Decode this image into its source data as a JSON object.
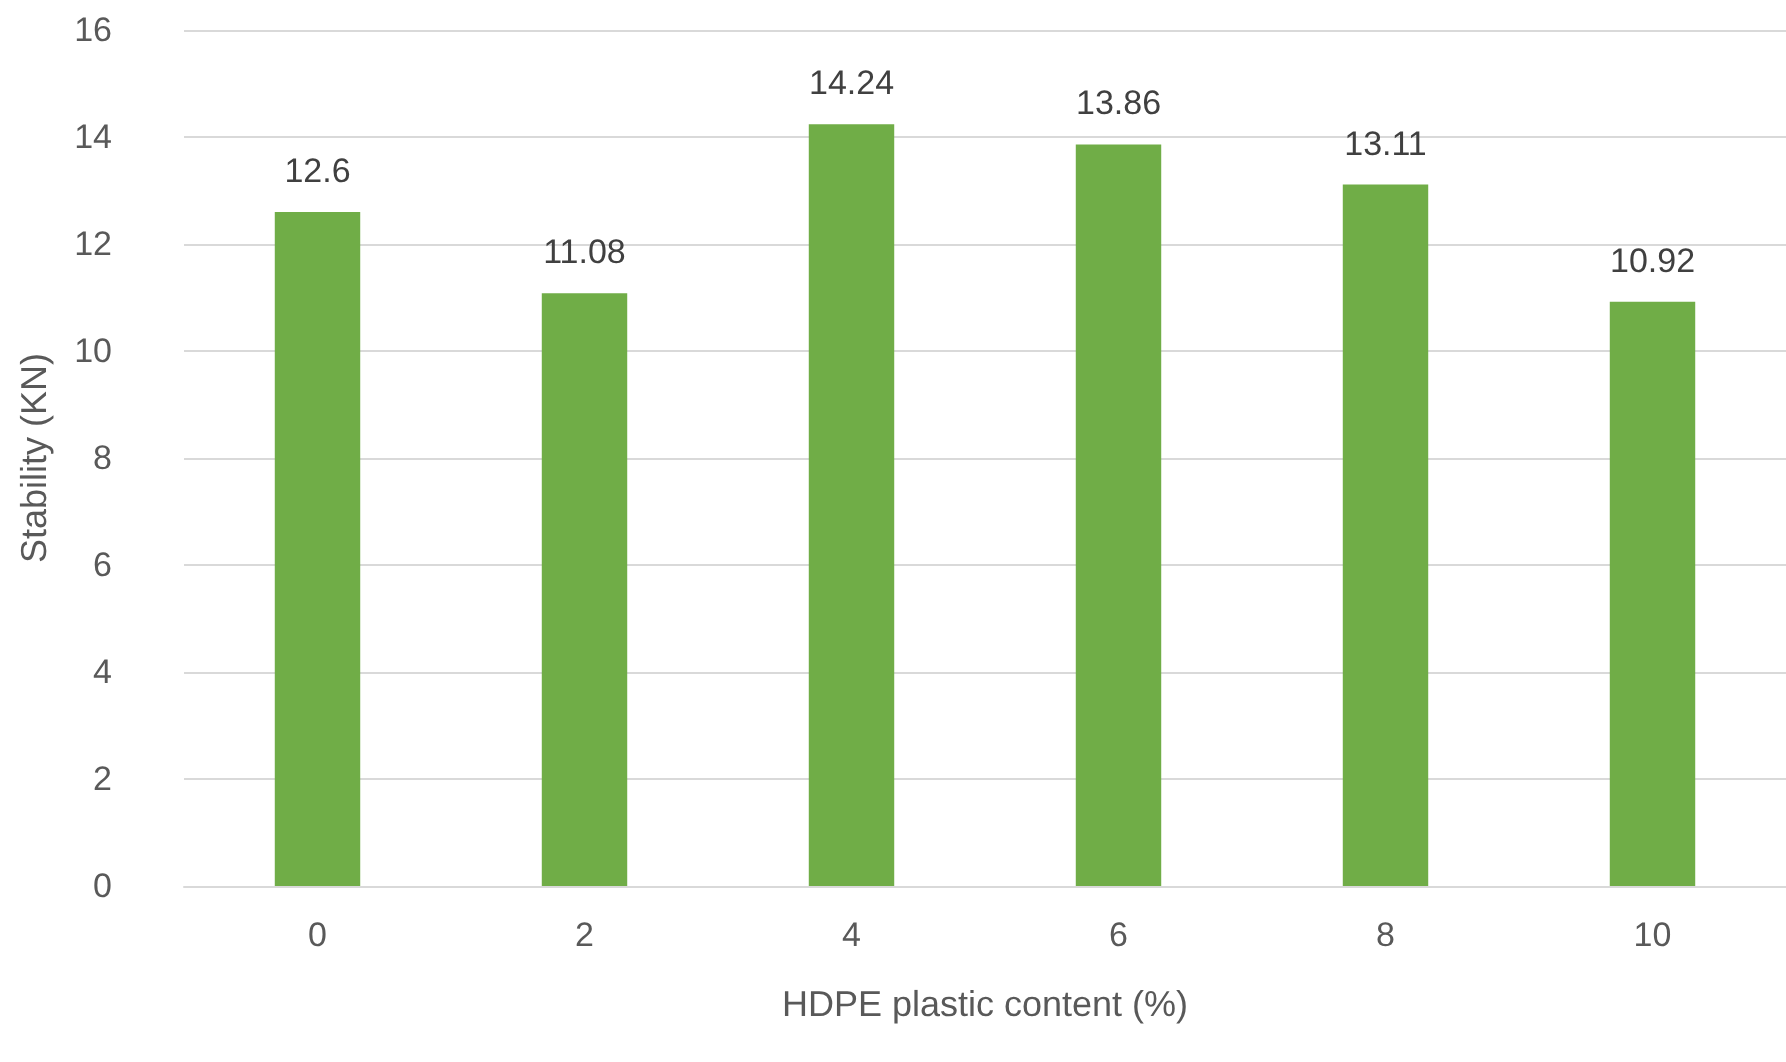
{
  "chart_data": {
    "type": "bar",
    "xlabel": "HDPE plastic content (%)",
    "ylabel": "Stability (KN)",
    "categories": [
      "0",
      "2",
      "4",
      "6",
      "8",
      "10"
    ],
    "values": [
      12.6,
      11.08,
      14.24,
      13.86,
      13.11,
      10.92
    ],
    "color": "#70ad47",
    "ylim": [
      0,
      16
    ],
    "yticks": [
      0,
      2,
      4,
      6,
      8,
      10,
      12,
      14,
      16
    ],
    "grid": "y",
    "data_labels": true
  }
}
